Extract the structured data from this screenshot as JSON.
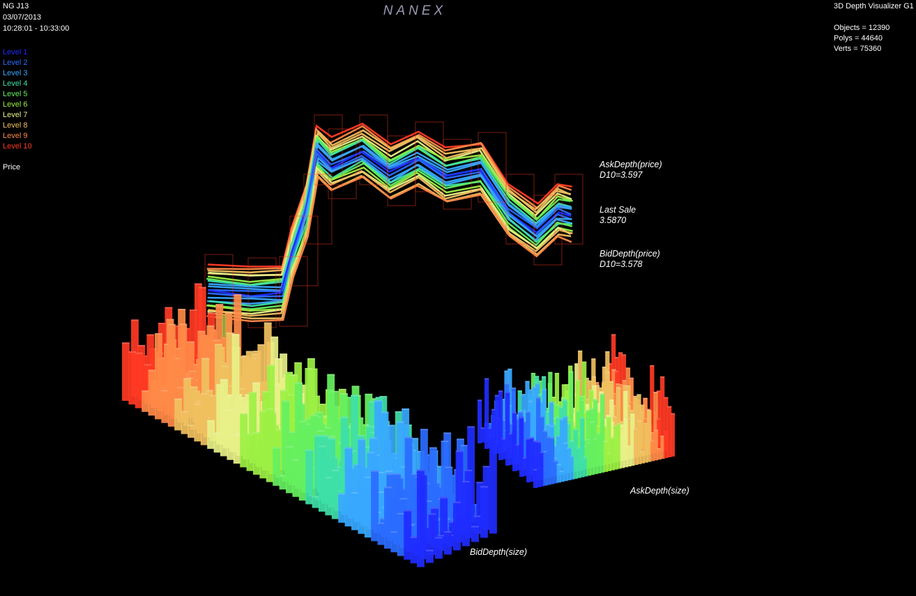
{
  "header": {
    "symbol": "NG J13",
    "date": "03/07/2013",
    "time_range": "10:28:01 - 10:33:00",
    "brand": "NANEX"
  },
  "app": {
    "title": "3D Depth Visualizer G1",
    "stats": [
      "Objects = 12390",
      "Polys = 44640",
      "Verts = 75360"
    ]
  },
  "legend": {
    "levels": [
      {
        "label": "Level 1",
        "color": "#1f2cff"
      },
      {
        "label": "Level 2",
        "color": "#2a6cff"
      },
      {
        "label": "Level 3",
        "color": "#38a8ff"
      },
      {
        "label": "Level 4",
        "color": "#3fe0a8"
      },
      {
        "label": "Level 5",
        "color": "#66f060"
      },
      {
        "label": "Level 6",
        "color": "#9cf044"
      },
      {
        "label": "Level 7",
        "color": "#e8f088"
      },
      {
        "label": "Level 8",
        "color": "#f0c060"
      },
      {
        "label": "Level 9",
        "color": "#ff8a48"
      },
      {
        "label": "Level 10",
        "color": "#ff3a24"
      }
    ],
    "price": "Price"
  },
  "annotations": {
    "ask_price": "AskDepth(price)",
    "ask_d10": "D10=3.597",
    "last_sale": "Last Sale",
    "last_sale_value": "3.5870",
    "bid_price": "BidDepth(price)",
    "bid_d10": "D10=3.578",
    "ask_size": "AskDepth(size)",
    "bid_size": "BidDepth(size)"
  }
}
